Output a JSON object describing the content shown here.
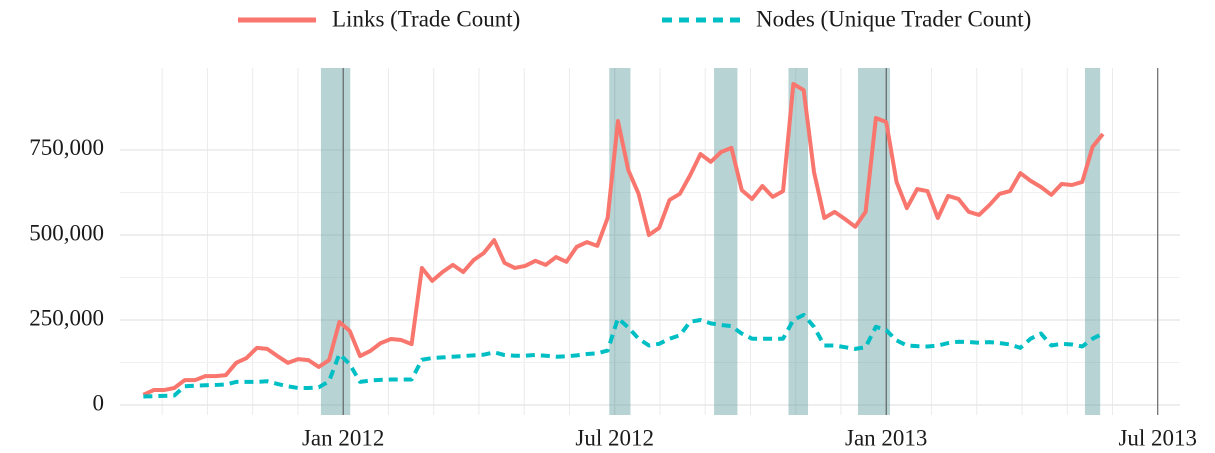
{
  "chart_data": {
    "type": "line",
    "x": [
      2011.632,
      2011.651,
      2011.67,
      2011.689,
      2011.708,
      2011.727,
      2011.746,
      2011.765,
      2011.784,
      2011.803,
      2011.822,
      2011.841,
      2011.86,
      2011.879,
      2011.898,
      2011.917,
      2011.936,
      2011.955,
      2011.974,
      2011.993,
      2012.012,
      2012.031,
      2012.05,
      2012.069,
      2012.088,
      2012.107,
      2012.126,
      2012.145,
      2012.164,
      2012.183,
      2012.202,
      2012.221,
      2012.24,
      2012.259,
      2012.278,
      2012.297,
      2012.316,
      2012.335,
      2012.354,
      2012.373,
      2012.392,
      2012.411,
      2012.43,
      2012.449,
      2012.468,
      2012.487,
      2012.506,
      2012.525,
      2012.544,
      2012.563,
      2012.582,
      2012.601,
      2012.62,
      2012.639,
      2012.658,
      2012.677,
      2012.696,
      2012.715,
      2012.734,
      2012.753,
      2012.772,
      2012.791,
      2012.81,
      2012.829,
      2012.848,
      2012.867,
      2012.886,
      2012.905,
      2012.924,
      2012.943,
      2012.962,
      2012.981,
      2013.0,
      2013.019,
      2013.038,
      2013.057,
      2013.076,
      2013.095,
      2013.114,
      2013.133,
      2013.152,
      2013.171,
      2013.19,
      2013.209,
      2013.228,
      2013.247,
      2013.266,
      2013.285,
      2013.304,
      2013.323,
      2013.342,
      2013.361,
      2013.38,
      2013.399
    ],
    "series": [
      {
        "name": "Links (Trade Count)",
        "color": "#f8766d",
        "dash": false,
        "values": [
          30000,
          44000,
          44000,
          50000,
          73000,
          73000,
          85000,
          85000,
          88000,
          124000,
          138000,
          168000,
          165000,
          144000,
          124000,
          135000,
          132000,
          112000,
          132000,
          244000,
          218000,
          144000,
          159000,
          182000,
          194000,
          191000,
          179000,
          403000,
          365000,
          391000,
          412000,
          391000,
          426000,
          447000,
          485000,
          418000,
          403000,
          409000,
          424000,
          412000,
          435000,
          421000,
          465000,
          479000,
          468000,
          550000,
          835000,
          691000,
          621000,
          500000,
          521000,
          603000,
          621000,
          676000,
          738000,
          715000,
          744000,
          756000,
          632000,
          606000,
          644000,
          612000,
          629000,
          944000,
          926000,
          685000,
          550000,
          568000,
          547000,
          524000,
          568000,
          844000,
          832000,
          656000,
          579000,
          635000,
          629000,
          550000,
          615000,
          606000,
          568000,
          559000,
          588000,
          621000,
          629000,
          682000,
          659000,
          641000,
          618000,
          650000,
          647000,
          656000,
          759000,
          797000
        ]
      },
      {
        "name": "Nodes (Unique Trader Count)",
        "color": "#00bfc4",
        "dash": true,
        "values": [
          25000,
          26000,
          27000,
          28000,
          55000,
          57000,
          58000,
          59000,
          60000,
          68000,
          68000,
          68000,
          70000,
          62000,
          55000,
          50000,
          50000,
          52000,
          70000,
          150000,
          120000,
          68000,
          72000,
          74000,
          75000,
          75000,
          75000,
          133000,
          138000,
          140000,
          142000,
          144000,
          146000,
          148000,
          155000,
          147000,
          145000,
          145000,
          147000,
          145000,
          142000,
          143000,
          146000,
          150000,
          152000,
          160000,
          255000,
          228000,
          195000,
          175000,
          180000,
          195000,
          205000,
          245000,
          250000,
          240000,
          235000,
          232000,
          210000,
          195000,
          195000,
          195000,
          195000,
          250000,
          265000,
          230000,
          175000,
          175000,
          170000,
          165000,
          170000,
          230000,
          220000,
          190000,
          175000,
          173000,
          172000,
          175000,
          182000,
          186000,
          185000,
          183000,
          185000,
          182000,
          178000,
          168000,
          195000,
          210000,
          175000,
          180000,
          178000,
          172000,
          195000,
          210000
        ]
      }
    ],
    "shaded_regions": [
      [
        2011.959,
        2012.013
      ],
      [
        2012.49,
        2012.529
      ],
      [
        2012.683,
        2012.726
      ],
      [
        2012.82,
        2012.856
      ],
      [
        2012.948,
        2013.007
      ],
      [
        2013.366,
        2013.394
      ]
    ],
    "shade_color": "#5f9ea0",
    "vlines": [
      2012.0,
      2013.0,
      2013.5
    ],
    "xlim": [
      2011.589,
      2013.541
    ],
    "xticks": [
      {
        "value": 2012.0,
        "label": "Jan 2012"
      },
      {
        "value": 2012.5,
        "label": "Jul 2012"
      },
      {
        "value": 2013.0,
        "label": "Jan 2013"
      },
      {
        "value": 2013.5,
        "label": "Jul 2013"
      }
    ],
    "ylim": [
      -29400,
      991000
    ],
    "yticks": [
      0,
      {
        "value": 250000,
        "label": "250,000"
      },
      {
        "value": 500000,
        "label": "500,000"
      },
      {
        "value": 750000,
        "label": "750,000"
      }
    ],
    "grid": true,
    "legend": "top"
  }
}
